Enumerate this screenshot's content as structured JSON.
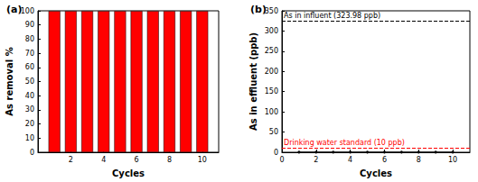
{
  "chart_data": [
    {
      "type": "bar",
      "title": "(a)",
      "x_label": "Cycles",
      "y_label": "As removal %",
      "x": [
        1,
        2,
        3,
        4,
        5,
        6,
        7,
        8,
        9,
        10
      ],
      "values": [
        99.9,
        99.9,
        99.9,
        99.9,
        99.9,
        99.9,
        99.9,
        99.9,
        99.9,
        99.9
      ],
      "color": "#ff0000",
      "xlim": [
        0,
        11
      ],
      "xticks": [
        2,
        4,
        6,
        8,
        10
      ],
      "ylim": [
        0,
        100
      ],
      "yticks": [
        0,
        10,
        20,
        30,
        40,
        50,
        60,
        70,
        80,
        90,
        100
      ],
      "grid": false
    },
    {
      "type": "line",
      "title": "(b)",
      "x_label": "Cycles",
      "y_label": "As in effluent (ppb)",
      "x": [
        1,
        2,
        3,
        4,
        5,
        6,
        7,
        8,
        9,
        10
      ],
      "values": [
        0.3,
        0.3,
        0.3,
        0.3,
        0.3,
        0.3,
        0.3,
        0.3,
        0.3,
        0.3
      ],
      "color": "#000000",
      "marker": "circle",
      "line_style": "solid",
      "xlim": [
        0,
        11
      ],
      "xticks": [
        0,
        2,
        4,
        6,
        8,
        10
      ],
      "ylim": [
        0,
        350
      ],
      "yticks": [
        0,
        50,
        100,
        150,
        200,
        250,
        300,
        350
      ],
      "grid": false,
      "reference_lines": [
        {
          "value": 323.98,
          "label": "As in influent (323.98 ppb)",
          "color": "#000000"
        },
        {
          "value": 10,
          "label": "Drinking water standard (10 ppb)",
          "color": "#ff0000"
        }
      ]
    }
  ]
}
